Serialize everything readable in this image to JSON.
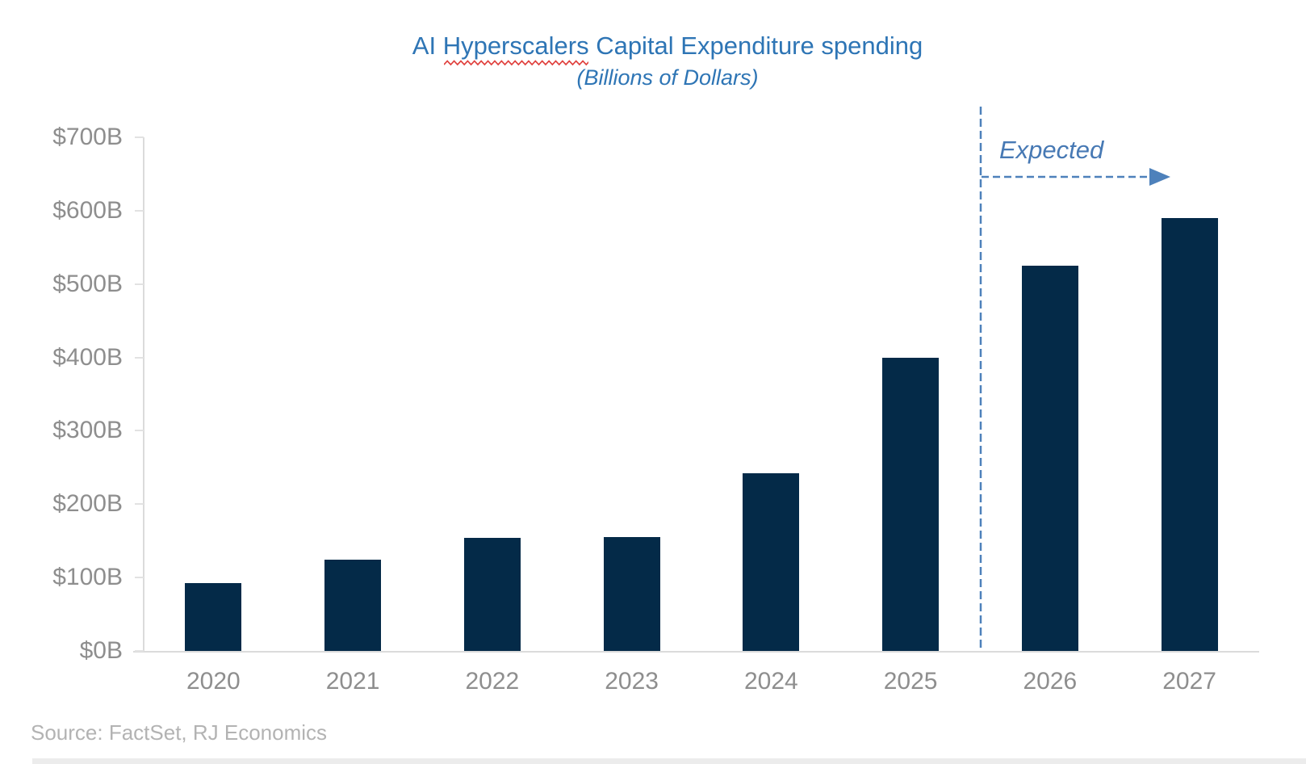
{
  "title": {
    "part1": "AI ",
    "word": "Hyperscalers",
    "part3": " Capital Expenditure spending"
  },
  "subtitle": "(Billions of Dollars)",
  "annotation": {
    "label": "Expected"
  },
  "source": "Source: FactSet, RJ Economics",
  "colors": {
    "bar": "#042A48",
    "title_blue": "#2E75B5",
    "annotation_blue": "#4779B4",
    "dashed_line_blue": "#4E81BB",
    "axis_text_gray": "#8E8E8E",
    "source_text_gray": "#B3B3B3",
    "axis_line_gray": "#DBDBDB",
    "squiggle_red": "#E0403D"
  },
  "chart_data": {
    "type": "bar",
    "title": "AI Hyperscalers Capital Expenditure spending",
    "subtitle": "(Billions of Dollars)",
    "categories": [
      "2020",
      "2021",
      "2022",
      "2023",
      "2024",
      "2025",
      "2026",
      "2027"
    ],
    "values": [
      92,
      124,
      154,
      155,
      242,
      400,
      525,
      590
    ],
    "units": "billions of dollars",
    "expected_from_category": "2026",
    "annotation": "Expected",
    "xlabel": "",
    "ylabel": "",
    "ylim": [
      0,
      700
    ],
    "ytick_step": 100,
    "ytick_labels": [
      "$0B",
      "$100B",
      "$200B",
      "$300B",
      "$400B",
      "$500B",
      "$600B",
      "$700B"
    ],
    "grid": false,
    "legend_position": "none",
    "source_note": "Source: FactSet, RJ Economics"
  }
}
